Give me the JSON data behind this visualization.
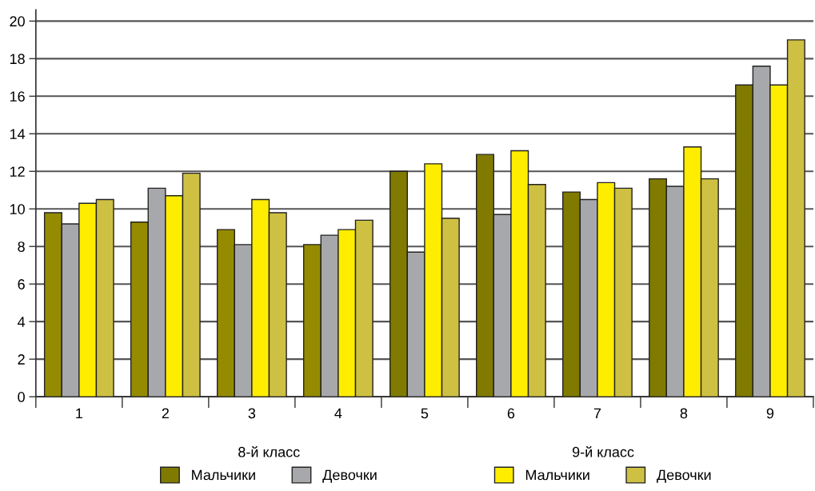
{
  "chart_data": {
    "type": "bar",
    "categories": [
      "1",
      "2",
      "3",
      "4",
      "5",
      "6",
      "7",
      "8",
      "9"
    ],
    "series": [
      {
        "name": "Мальчики",
        "color": "#807a00",
        "colors": [
          "#958b00",
          "#958b00",
          "#958b00",
          "#958b00",
          "#807a00",
          "#807a00",
          "#807a00",
          "#807a00",
          "#807a00"
        ],
        "values": [
          9.8,
          9.3,
          8.9,
          8.1,
          12.0,
          12.9,
          10.9,
          11.6,
          16.6
        ]
      },
      {
        "name": "Девочки",
        "color": "#a7a8ab",
        "values": [
          9.2,
          11.1,
          8.1,
          8.6,
          7.7,
          9.7,
          10.5,
          11.2,
          17.6
        ]
      },
      {
        "name": "Мальчики",
        "color": "#ffed00",
        "values": [
          10.3,
          10.7,
          10.5,
          8.9,
          12.4,
          13.1,
          11.4,
          13.3,
          16.6
        ]
      },
      {
        "name": "Девочки",
        "color": "#cec043",
        "values": [
          10.5,
          11.9,
          9.8,
          9.4,
          9.5,
          11.3,
          11.1,
          11.6,
          19.0
        ]
      }
    ],
    "annotations": [
      "8-й класс",
      "9-й класс"
    ],
    "ylim": [
      0,
      20.6
    ],
    "yticks": [
      0,
      2,
      4,
      6,
      8,
      10,
      12,
      14,
      16,
      18,
      20
    ],
    "grid": "y",
    "legend": "bottom"
  }
}
